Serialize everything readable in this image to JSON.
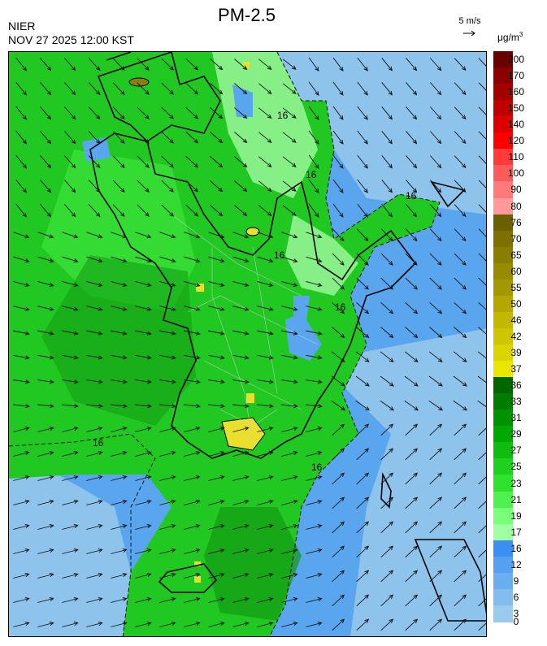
{
  "header": {
    "title": "PM-2.5",
    "agency": "NIER",
    "datetime": "NOV 27 2025 12:00 KST",
    "wind_reference": "5 m/s",
    "unit": "μg/m",
    "unit_exp": "3"
  },
  "map": {
    "contour_labels": [
      "16",
      "16",
      "16",
      "16",
      "16",
      "16",
      "16"
    ],
    "colors": {
      "dark_green": "#119a11",
      "green": "#22c822",
      "bright_green": "#38e038",
      "light_green": "#86f086",
      "blue": "#3d91ec",
      "mid_blue": "#5aa6ee",
      "light_blue": "#8ec3ec",
      "yellow": "#e8e02c",
      "olive": "#8a7d12"
    }
  },
  "legend": {
    "levels": [
      {
        "label": "200",
        "color": "#6b0000"
      },
      {
        "label": "170",
        "color": "#8b0000"
      },
      {
        "label": "160",
        "color": "#a50000"
      },
      {
        "label": "150",
        "color": "#c00000"
      },
      {
        "label": "140",
        "color": "#de0000"
      },
      {
        "label": "120",
        "color": "#ff0000"
      },
      {
        "label": "110",
        "color": "#ff3a3a"
      },
      {
        "label": "100",
        "color": "#ff5a5a"
      },
      {
        "label": "90",
        "color": "#ff7a7a"
      },
      {
        "label": "80",
        "color": "#ff9a9a"
      },
      {
        "label": "76",
        "color": "#6b6000"
      },
      {
        "label": "70",
        "color": "#7d7000"
      },
      {
        "label": "65",
        "color": "#8a7e00"
      },
      {
        "label": "60",
        "color": "#978b00"
      },
      {
        "label": "55",
        "color": "#a49800"
      },
      {
        "label": "50",
        "color": "#b4a800"
      },
      {
        "label": "46",
        "color": "#c3b800"
      },
      {
        "label": "42",
        "color": "#d0c600"
      },
      {
        "label": "39",
        "color": "#dcd400"
      },
      {
        "label": "37",
        "color": "#ebe600"
      },
      {
        "label": "36",
        "color": "#006600"
      },
      {
        "label": "33",
        "color": "#007c00"
      },
      {
        "label": "31",
        "color": "#009200"
      },
      {
        "label": "29",
        "color": "#00a800"
      },
      {
        "label": "27",
        "color": "#10bc10"
      },
      {
        "label": "25",
        "color": "#20d020"
      },
      {
        "label": "23",
        "color": "#2ee22e"
      },
      {
        "label": "21",
        "color": "#50f050"
      },
      {
        "label": "19",
        "color": "#7aff7a"
      },
      {
        "label": "17",
        "color": "#a0ffa0"
      },
      {
        "label": "16",
        "color": "#3a8ff0"
      },
      {
        "label": "12",
        "color": "#55a0f0"
      },
      {
        "label": "9",
        "color": "#6aaef0"
      },
      {
        "label": "6",
        "color": "#82bdee"
      },
      {
        "label": "3",
        "color": "#9acbec"
      },
      {
        "label": "0",
        "color": "#ffffff"
      }
    ]
  }
}
